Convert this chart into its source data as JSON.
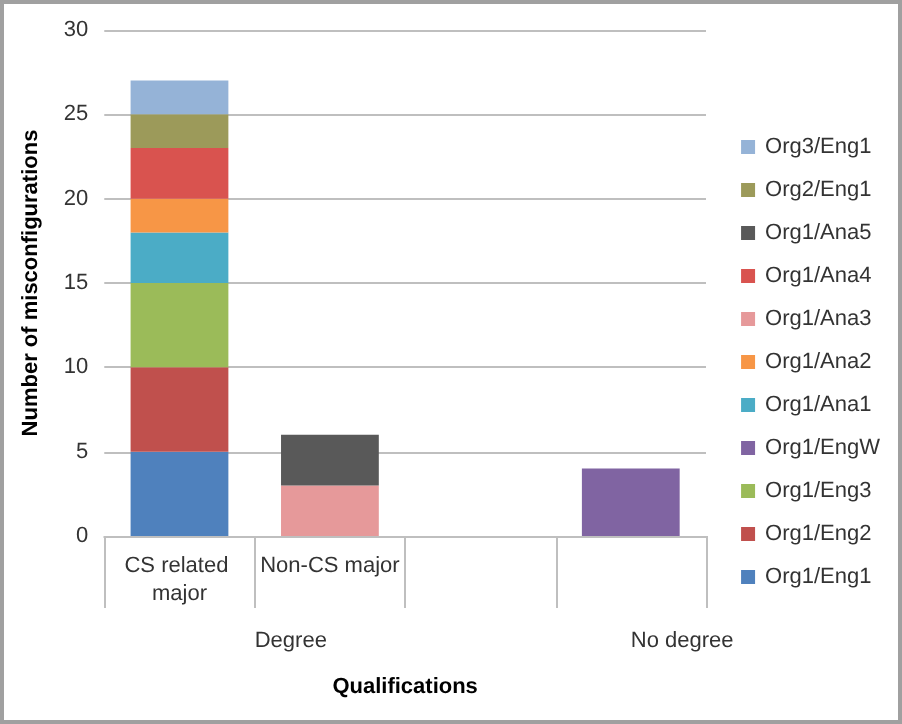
{
  "chart_data": {
    "type": "bar",
    "stacked": true,
    "xlabel": "Qualifications",
    "ylabel": "Number of misconfigurations",
    "categories": [
      "CS related major",
      "Non-CS major",
      null,
      null
    ],
    "ylim": [
      0,
      30
    ],
    "yticks": [
      0,
      5,
      10,
      15,
      20,
      25,
      30
    ],
    "grid": "y",
    "legend": "right",
    "annotations": [
      "Degree",
      "No degree"
    ],
    "series": [
      {
        "name": "Org1/Eng1",
        "color": "#4f81bd",
        "values": [
          5,
          null,
          null,
          null
        ]
      },
      {
        "name": "Org1/Eng2",
        "color": "#c0504d",
        "values": [
          5,
          null,
          null,
          null
        ]
      },
      {
        "name": "Org1/Eng3",
        "color": "#9bbb59",
        "values": [
          5,
          null,
          null,
          null
        ]
      },
      {
        "name": "Org1/EngW",
        "color": "#8064a2",
        "values": [
          null,
          null,
          null,
          4
        ]
      },
      {
        "name": "Org1/Ana1",
        "color": "#4bacc6",
        "values": [
          3,
          null,
          null,
          null
        ]
      },
      {
        "name": "Org1/Ana2",
        "color": "#f79646",
        "values": [
          2,
          null,
          null,
          null
        ]
      },
      {
        "name": "Org1/Ana3",
        "color": "#e6999a",
        "values": [
          null,
          3,
          null,
          null
        ]
      },
      {
        "name": "Org1/Ana4",
        "color": "#d9534f",
        "values": [
          3,
          null,
          null,
          null
        ]
      },
      {
        "name": "Org1/Ana5",
        "color": "#595959",
        "values": [
          null,
          3,
          null,
          null
        ]
      },
      {
        "name": "Org2/Eng1",
        "color": "#9c9a5a",
        "values": [
          2,
          null,
          null,
          null
        ]
      },
      {
        "name": "Org3/Eng1",
        "color": "#95b3d7",
        "values": [
          2,
          null,
          null,
          null
        ]
      }
    ]
  }
}
